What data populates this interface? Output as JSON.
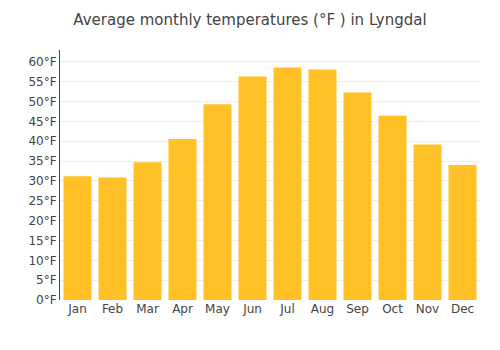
{
  "chart_data": {
    "type": "bar",
    "title": "Average monthly temperatures (°F ) in Lyngdal",
    "categories": [
      "Jan",
      "Feb",
      "Mar",
      "Apr",
      "May",
      "Jun",
      "Jul",
      "Aug",
      "Sep",
      "Oct",
      "Nov",
      "Dec"
    ],
    "values": [
      31.2,
      30.9,
      34.7,
      40.6,
      49.3,
      56.3,
      58.6,
      58.1,
      52.3,
      46.4,
      39.2,
      34.0
    ],
    "color": "#FFC125",
    "ylim": [
      0,
      63
    ],
    "yticks": [
      {
        "value": 0,
        "label": "0°F"
      },
      {
        "value": 5,
        "label": "5°F"
      },
      {
        "value": 10,
        "label": "10°F"
      },
      {
        "value": 15,
        "label": "15°F"
      },
      {
        "value": 20,
        "label": "20°F"
      },
      {
        "value": 25,
        "label": "25°F"
      },
      {
        "value": 30,
        "label": "30°F"
      },
      {
        "value": 35,
        "label": "35°F"
      },
      {
        "value": 40,
        "label": "40°F"
      },
      {
        "value": 45,
        "label": "45°F"
      },
      {
        "value": 50,
        "label": "50°F"
      },
      {
        "value": 55,
        "label": "55°F"
      },
      {
        "value": 60,
        "label": "60°F"
      }
    ],
    "grid": true
  }
}
